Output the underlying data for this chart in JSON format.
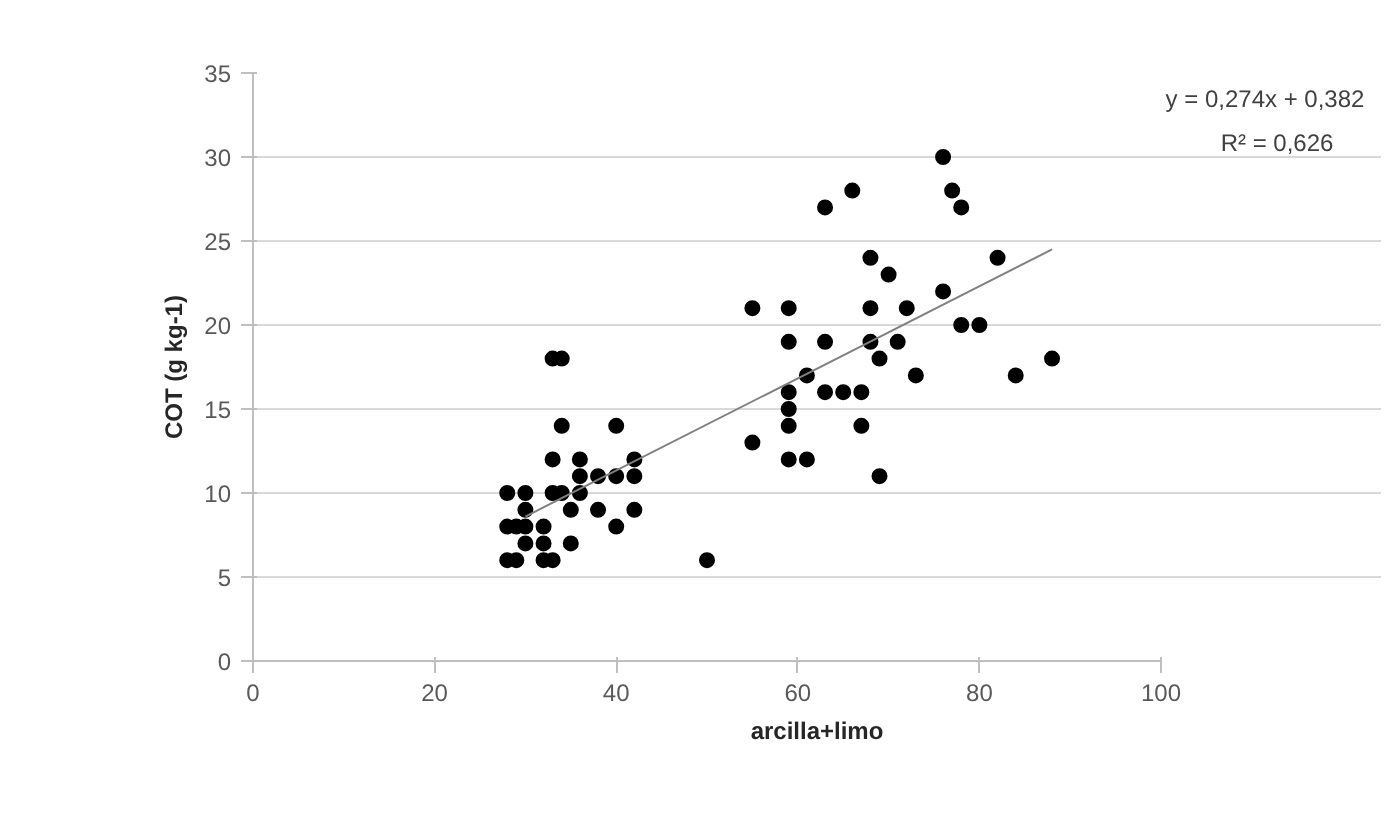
{
  "chart_data": {
    "type": "scatter",
    "xlabel": "arcilla+limo",
    "ylabel": "COT (g kg-1)",
    "annotations": [
      "y = 0,274x + 0,382",
      "R² = 0,626"
    ],
    "xlim": [
      0,
      100
    ],
    "xticks": [
      0,
      20,
      40,
      60,
      80,
      100
    ],
    "ylim": [
      0,
      35
    ],
    "yticks": [
      0,
      5,
      10,
      15,
      20,
      25,
      30,
      35
    ],
    "grid": "y",
    "series": [
      {
        "marker": "circle",
        "color": "#000000",
        "x": [
          33,
          34,
          34,
          40,
          33,
          36,
          42,
          36,
          38,
          40,
          42,
          28,
          30,
          33,
          34,
          36,
          30,
          35,
          38,
          42,
          28,
          29,
          30,
          32,
          40,
          30,
          32,
          35,
          28,
          29,
          32,
          33,
          50,
          76,
          66,
          63,
          77,
          78,
          68,
          70,
          82,
          76,
          55,
          59,
          68,
          72,
          78,
          80,
          59,
          63,
          68,
          71,
          69,
          73,
          84,
          88,
          61,
          59,
          63,
          65,
          67,
          59,
          59,
          67,
          55,
          59,
          61,
          69
        ],
        "values": [
          18,
          18,
          14,
          14,
          12,
          12,
          12,
          11,
          11,
          11,
          11,
          10,
          10,
          10,
          10,
          10,
          9,
          9,
          9,
          9,
          8,
          8,
          8,
          8,
          8,
          7,
          7,
          7,
          6,
          6,
          6,
          6,
          6,
          30,
          28,
          27,
          28,
          27,
          24,
          23,
          24,
          22,
          21,
          21,
          21,
          21,
          20,
          20,
          19,
          19,
          19,
          19,
          18,
          17,
          17,
          18,
          17,
          16,
          16,
          16,
          16,
          15,
          14,
          14,
          13,
          12,
          12,
          11
        ]
      },
      {
        "type": "line",
        "color": "#808080",
        "x": [
          30,
          88
        ],
        "values": [
          8.6,
          24.5
        ]
      }
    ]
  }
}
